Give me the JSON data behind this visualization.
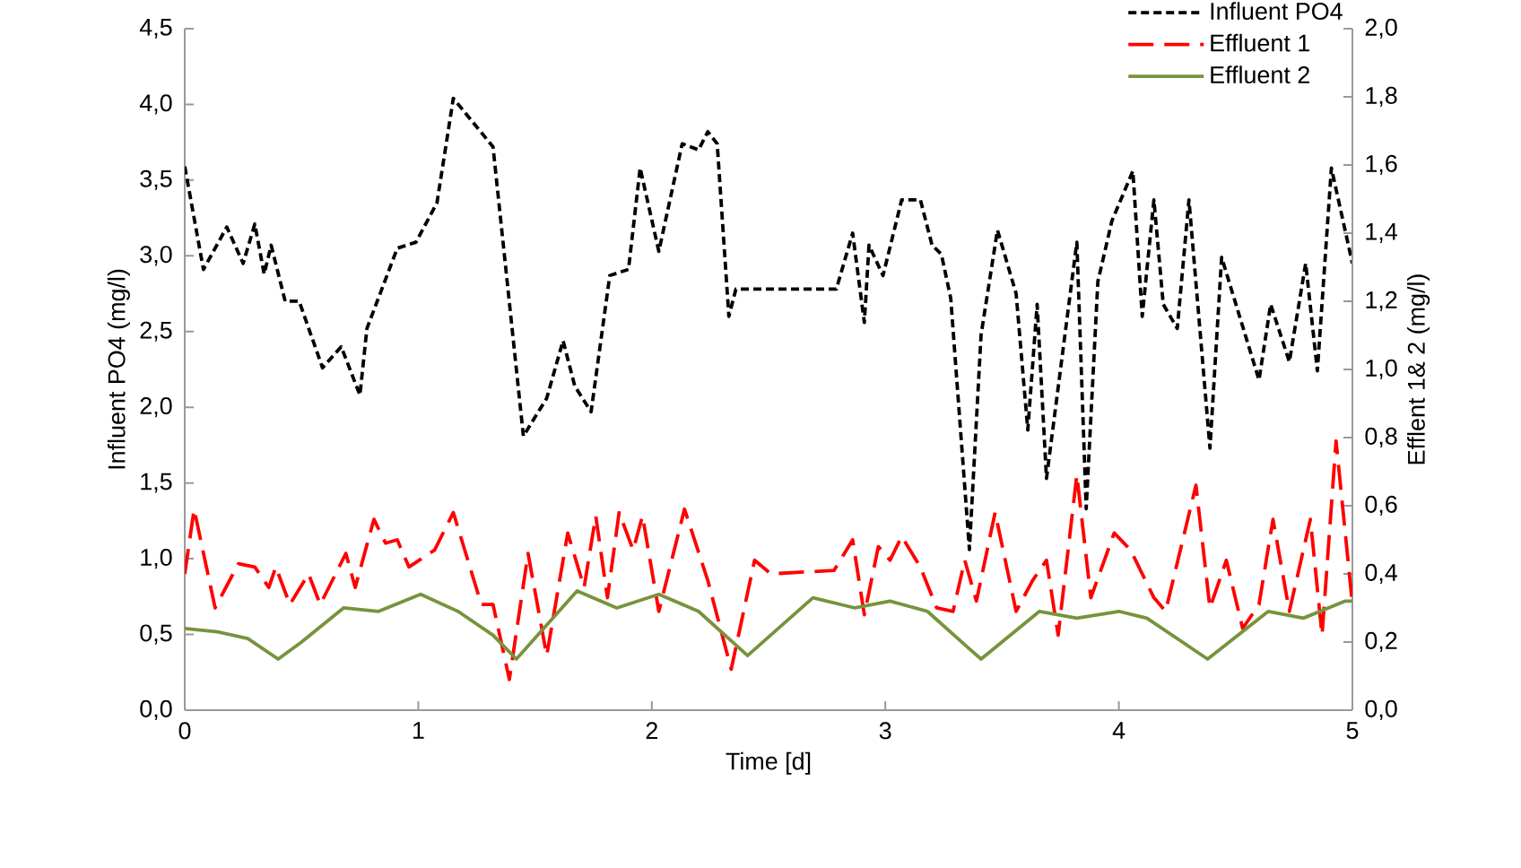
{
  "chart_data": {
    "type": "line",
    "xlabel": "Time [d]",
    "ylabel": "Influent PO4 (mg/l)",
    "y2label": "Efflent 1& 2 (mg/l)",
    "xlim": [
      0,
      5
    ],
    "xticks": [
      0,
      1,
      2,
      3,
      4,
      5
    ],
    "ylim": [
      0,
      4.5
    ],
    "yticks": [
      {
        "value": 0,
        "label": "0,0"
      },
      {
        "value": 0.5,
        "label": "0,5"
      },
      {
        "value": 1,
        "label": "1,0"
      },
      {
        "value": 1.5,
        "label": "1,5"
      },
      {
        "value": 2,
        "label": "2,0"
      },
      {
        "value": 2.5,
        "label": "2,5"
      },
      {
        "value": 3,
        "label": "3,0"
      },
      {
        "value": 3.5,
        "label": "3,5"
      },
      {
        "value": 4,
        "label": "4,0"
      },
      {
        "value": 4.5,
        "label": "4,5"
      }
    ],
    "y2lim": [
      0,
      2
    ],
    "y2ticks": [
      {
        "value": 0,
        "label": "0,0"
      },
      {
        "value": 0.2,
        "label": "0,2"
      },
      {
        "value": 0.4,
        "label": "0,4"
      },
      {
        "value": 0.6,
        "label": "0,6"
      },
      {
        "value": 0.8,
        "label": "0,8"
      },
      {
        "value": 1,
        "label": "1,0"
      },
      {
        "value": 1.2,
        "label": "1,2"
      },
      {
        "value": 1.4,
        "label": "1,4"
      },
      {
        "value": 1.6,
        "label": "1,6"
      },
      {
        "value": 1.8,
        "label": "1,8"
      },
      {
        "value": 2,
        "label": "2,0"
      }
    ],
    "legend": "top right",
    "marker": "none",
    "series": [
      {
        "name": "Influent PO4",
        "color": "#000000",
        "line_style": "dotted",
        "x": [
          0,
          0.08,
          0.18,
          0.25,
          0.3,
          0.34,
          0.37,
          0.43,
          0.49,
          0.59,
          0.67,
          0.75,
          0.78,
          0.91,
          0.99,
          1.08,
          1.15,
          1.32,
          1.45,
          1.55,
          1.62,
          1.67,
          1.74,
          1.82,
          1.9,
          1.95,
          2.03,
          2.13,
          2.2,
          2.24,
          2.28,
          2.33,
          2.36,
          2.79,
          2.86,
          2.91,
          2.93,
          2.99,
          3.07,
          3.15,
          3.2,
          3.24,
          3.28,
          3.36,
          3.41,
          3.48,
          3.56,
          3.61,
          3.65,
          3.69,
          3.82,
          3.86,
          3.91,
          3.97,
          4.06,
          4.1,
          4.15,
          4.19,
          4.25,
          4.3,
          4.39,
          4.44,
          4.6,
          4.65,
          4.73,
          4.8,
          4.85,
          4.91,
          5
        ],
        "values": [
          3.59,
          2.91,
          3.19,
          2.95,
          3.21,
          2.88,
          3.07,
          2.7,
          2.7,
          2.26,
          2.4,
          2.08,
          2.52,
          3.05,
          3.09,
          3.35,
          4.04,
          3.72,
          1.81,
          2.06,
          2.44,
          2.14,
          1.97,
          2.87,
          2.91,
          3.58,
          3.03,
          3.74,
          3.7,
          3.82,
          3.74,
          2.6,
          2.78,
          2.78,
          3.15,
          2.56,
          3.07,
          2.87,
          3.37,
          3.37,
          3.07,
          3.01,
          2.72,
          1.06,
          2.48,
          3.17,
          2.75,
          1.85,
          2.68,
          1.53,
          3.09,
          1.33,
          2.83,
          3.23,
          3.56,
          2.6,
          3.37,
          2.68,
          2.52,
          3.37,
          1.73,
          2.99,
          2.18,
          2.68,
          2.3,
          2.95,
          2.24,
          3.58,
          2.95
        ]
      },
      {
        "name": "Effluent 1",
        "color": "#ff0000",
        "line_style": "dashed",
        "axis": "y2",
        "x": [
          0,
          0.04,
          0.13,
          0.23,
          0.3,
          0.36,
          0.39,
          0.45,
          0.53,
          0.58,
          0.69,
          0.73,
          0.81,
          0.86,
          0.91,
          0.96,
          1.07,
          1.15,
          1.27,
          1.32,
          1.39,
          1.47,
          1.55,
          1.64,
          1.71,
          1.76,
          1.81,
          1.86,
          1.92,
          1.96,
          2.03,
          2.14,
          2.24,
          2.34,
          2.44,
          2.51,
          2.78,
          2.86,
          2.91,
          2.97,
          3.02,
          3.07,
          3.15,
          3.22,
          3.29,
          3.34,
          3.39,
          3.47,
          3.56,
          3.63,
          3.69,
          3.74,
          3.82,
          3.88,
          3.98,
          4.05,
          4.15,
          4.2,
          4.33,
          4.39,
          4.46,
          4.53,
          4.6,
          4.66,
          4.73,
          4.82,
          4.87,
          4.93,
          5
        ],
        "values": [
          0.4,
          0.59,
          0.3,
          0.43,
          0.42,
          0.36,
          0.42,
          0.31,
          0.4,
          0.31,
          0.46,
          0.36,
          0.56,
          0.49,
          0.5,
          0.42,
          0.47,
          0.58,
          0.31,
          0.31,
          0.09,
          0.46,
          0.16,
          0.52,
          0.36,
          0.57,
          0.33,
          0.58,
          0.47,
          0.57,
          0.29,
          0.59,
          0.38,
          0.12,
          0.44,
          0.4,
          0.41,
          0.5,
          0.28,
          0.48,
          0.44,
          0.51,
          0.42,
          0.3,
          0.29,
          0.44,
          0.32,
          0.58,
          0.29,
          0.38,
          0.44,
          0.22,
          0.69,
          0.33,
          0.52,
          0.47,
          0.33,
          0.29,
          0.66,
          0.3,
          0.44,
          0.24,
          0.31,
          0.56,
          0.29,
          0.56,
          0.22,
          0.79,
          0.31
        ]
      },
      {
        "name": "Effluent 2",
        "color": "#77933c",
        "line_style": "solid",
        "axis": "y2",
        "x": [
          0,
          0.14,
          0.27,
          0.4,
          0.5,
          0.68,
          0.83,
          1.01,
          1.17,
          1.32,
          1.42,
          1.55,
          1.68,
          1.85,
          2.03,
          2.2,
          2.41,
          2.69,
          2.87,
          3.02,
          3.18,
          3.36,
          3.41,
          3.66,
          3.82,
          4,
          4.12,
          4.38,
          4.64,
          4.79,
          4.97,
          5
        ],
        "values": [
          0.24,
          0.23,
          0.21,
          0.15,
          0.2,
          0.3,
          0.29,
          0.34,
          0.29,
          0.22,
          0.15,
          0.25,
          0.35,
          0.3,
          0.34,
          0.29,
          0.16,
          0.33,
          0.3,
          0.32,
          0.29,
          0.18,
          0.15,
          0.29,
          0.27,
          0.29,
          0.27,
          0.15,
          0.29,
          0.27,
          0.32,
          0.32
        ]
      }
    ]
  }
}
